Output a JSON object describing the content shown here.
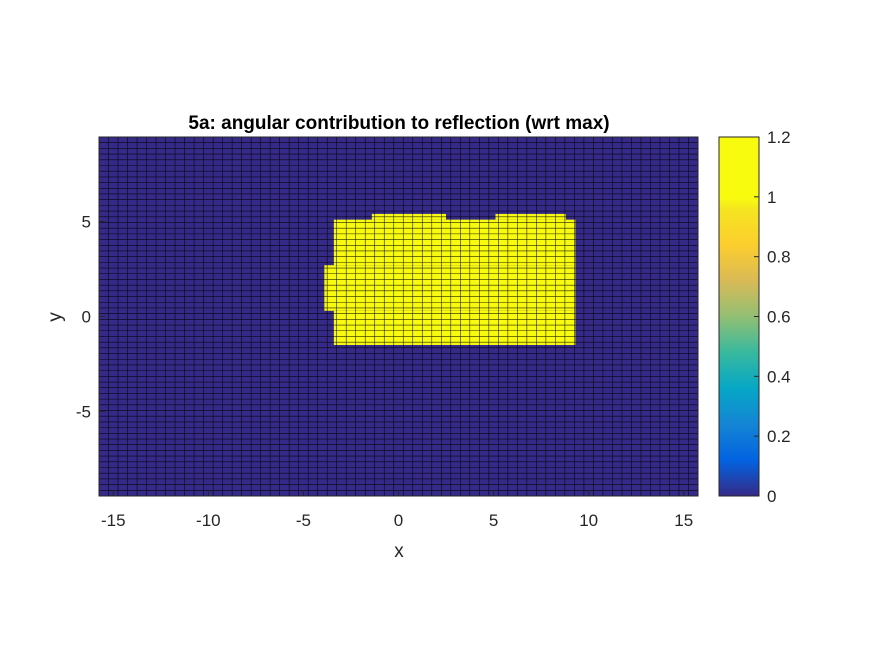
{
  "chart_data": {
    "type": "heatmap",
    "title": "5a: angular contribution to reflection (wrt max)",
    "xlabel": "x",
    "ylabel": "y",
    "xlim": [
      -15.75,
      15.75
    ],
    "ylim": [
      -9.45,
      9.45
    ],
    "x_ticks": [
      -15,
      -10,
      -5,
      0,
      5,
      10,
      15
    ],
    "y_ticks": [
      -5,
      0,
      5
    ],
    "grid_cell_width": 0.5,
    "grid_cell_height": 0.3,
    "colormap": "parula",
    "colorbar": {
      "limits": [
        0,
        1.2
      ],
      "ticks": [
        0,
        0.2,
        0.4,
        0.6,
        0.8,
        1,
        1.2
      ]
    },
    "low_value": 0,
    "high_value": 1.2,
    "high_region_rows": [
      {
        "y_range": [
          -1.5,
          0.3
        ],
        "x_range": [
          -3.4,
          9.3
        ]
      },
      {
        "y_range": [
          0.3,
          2.7
        ],
        "x_range": [
          -3.9,
          9.3
        ]
      },
      {
        "y_range": [
          2.7,
          5.1
        ],
        "x_range": [
          -3.4,
          9.3
        ]
      },
      {
        "y_range": [
          5.1,
          5.4
        ],
        "x_range": [
          -1.4,
          2.5
        ]
      },
      {
        "y_range": [
          5.1,
          5.4
        ],
        "x_range": [
          5.1,
          8.8
        ]
      }
    ],
    "colors": {
      "low": "#352a87",
      "high": "#f9fb0e",
      "grid": "#000000"
    }
  }
}
